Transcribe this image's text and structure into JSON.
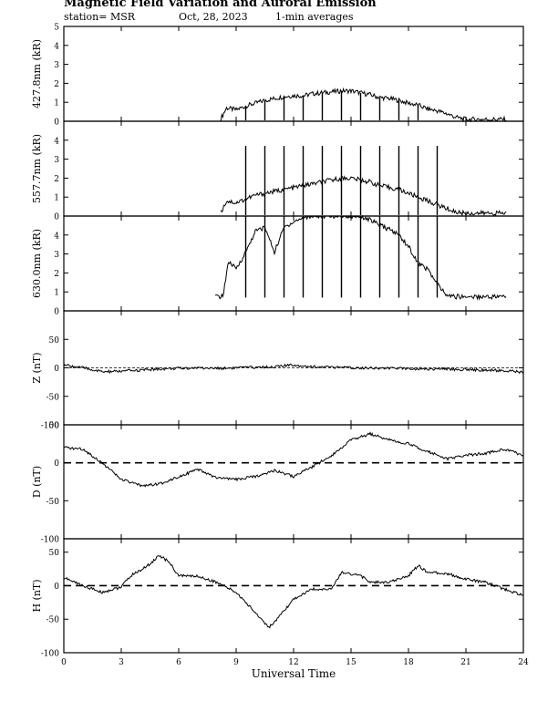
{
  "header": {
    "title": "Magnetic Field Variation and Auroral Emission",
    "station": "station= MSR",
    "date": "Oct, 28, 2023",
    "averaging": "1-min averages"
  },
  "chart_data": [
    {
      "type": "line",
      "ylabel": "427.8nm (kR)",
      "xlim": [
        0,
        24
      ],
      "ylim": [
        0,
        5
      ],
      "yticks": [
        0,
        1,
        2,
        3,
        4,
        5
      ],
      "data_start_hour": 8.2,
      "data_end_hour": 23.1,
      "spike_hours": [
        9.5,
        10.5,
        11.5,
        12.5,
        13.5,
        14.5,
        15.5,
        16.5,
        17.5,
        18.5
      ],
      "series": [
        {
          "x": [
            8.2,
            8.5,
            9,
            9.5,
            10,
            10.5,
            11,
            11.5,
            12,
            12.5,
            13,
            13.5,
            14,
            14.5,
            15,
            15.5,
            16,
            16.5,
            17,
            17.5,
            18,
            18.5,
            19,
            19.5,
            20,
            20.5,
            21,
            21.5,
            22,
            22.5,
            23.1
          ],
          "y": [
            0.15,
            0.7,
            0.6,
            0.8,
            0.95,
            1.1,
            1.2,
            1.3,
            1.35,
            1.35,
            1.45,
            1.5,
            1.55,
            1.6,
            1.6,
            1.5,
            1.4,
            1.25,
            1.2,
            1.1,
            0.95,
            0.85,
            0.65,
            0.55,
            0.4,
            0.2,
            0.1,
            0.1,
            0.1,
            0.1,
            0.1
          ]
        }
      ]
    },
    {
      "type": "line",
      "ylabel": "557.7nm (kR)",
      "xlim": [
        0,
        24
      ],
      "ylim": [
        0,
        5
      ],
      "yticks": [
        0,
        1,
        2,
        3,
        4
      ],
      "data_start_hour": 8.2,
      "data_end_hour": 23.1,
      "spike_hours": [
        9.5,
        10.5,
        11.5,
        12.5,
        13.5,
        14.5,
        15.5,
        16.5,
        17.5,
        18.5,
        19.5
      ],
      "spike_top": 3.7,
      "series": [
        {
          "x": [
            8.2,
            8.5,
            9,
            9.5,
            10,
            10.5,
            11,
            11.5,
            12,
            12.5,
            13,
            13.5,
            14,
            14.5,
            15,
            15.5,
            16,
            16.5,
            17,
            17.5,
            18,
            18.5,
            19,
            19.5,
            20,
            20.5,
            21,
            21.5,
            22,
            22.5,
            23.1
          ],
          "y": [
            0.2,
            0.8,
            0.7,
            0.9,
            1.1,
            1.2,
            1.3,
            1.4,
            1.5,
            1.6,
            1.7,
            1.8,
            1.9,
            2.0,
            2.0,
            1.9,
            1.8,
            1.6,
            1.5,
            1.4,
            1.2,
            1.0,
            0.8,
            0.6,
            0.4,
            0.2,
            0.15,
            0.15,
            0.15,
            0.15,
            0.15
          ]
        }
      ]
    },
    {
      "type": "line",
      "ylabel": "630.0nm (kR)",
      "xlim": [
        0,
        24
      ],
      "ylim": [
        0,
        5
      ],
      "yticks": [
        0,
        1,
        2,
        3,
        4
      ],
      "data_start_hour": 7.9,
      "data_end_hour": 23.1,
      "spike_hours": [
        9.5,
        10.5,
        11.5,
        12.5,
        13.5,
        14.5,
        15.5,
        16.5,
        17.5,
        18.5,
        19.5
      ],
      "spike_top": 5.0,
      "series": [
        {
          "x": [
            7.9,
            8.3,
            8.6,
            9,
            9.5,
            10,
            10.5,
            11,
            11.5,
            12,
            12.5,
            13,
            13.5,
            14,
            14.5,
            15,
            15.5,
            16,
            16.5,
            17,
            17.5,
            18,
            18.5,
            19,
            19.5,
            20,
            20.5,
            21,
            21.5,
            22,
            22.5,
            23.1
          ],
          "y": [
            0.75,
            0.75,
            2.6,
            2.2,
            3.1,
            4.2,
            4.4,
            3.1,
            4.4,
            4.7,
            4.9,
            5.0,
            5.0,
            5.0,
            5.0,
            5.0,
            5.0,
            4.8,
            4.5,
            4.3,
            4.0,
            3.4,
            2.5,
            2.2,
            1.4,
            0.8,
            0.75,
            0.75,
            0.75,
            0.75,
            0.75,
            0.75
          ]
        }
      ]
    },
    {
      "type": "line",
      "ylabel": "Z (nT)",
      "xlim": [
        0,
        24
      ],
      "ylim": [
        -100,
        100
      ],
      "yticks": [
        -100,
        -50,
        0,
        50
      ],
      "reference_line": 0,
      "series": [
        {
          "x": [
            0,
            1,
            2,
            3,
            4,
            5,
            6,
            7,
            8,
            9,
            10,
            11,
            12,
            13,
            14,
            15,
            16,
            17,
            18,
            19,
            20,
            21,
            22,
            23,
            24
          ],
          "y": [
            5,
            0,
            -7,
            -6,
            -4,
            -2,
            -1,
            0,
            -1,
            0,
            1,
            2,
            5,
            2,
            1,
            0,
            0,
            -1,
            -1,
            -2,
            -2,
            -3,
            -4,
            -5,
            -8
          ]
        }
      ]
    },
    {
      "type": "line",
      "ylabel": "D (nT)",
      "xlim": [
        0,
        24
      ],
      "ylim": [
        -100,
        50
      ],
      "yticks": [
        -100,
        -50,
        0,
        50
      ],
      "reference_line": 0,
      "series": [
        {
          "x": [
            0,
            1,
            2,
            3,
            4,
            5,
            6,
            7,
            8,
            9,
            10,
            11,
            12,
            13,
            14,
            15,
            16,
            17,
            18,
            19,
            20,
            21,
            22,
            23,
            24
          ],
          "y": [
            20,
            18,
            0,
            -22,
            -30,
            -28,
            -18,
            -9,
            -20,
            -22,
            -18,
            -10,
            -18,
            -5,
            10,
            30,
            38,
            30,
            25,
            15,
            5,
            10,
            12,
            18,
            10
          ]
        }
      ]
    },
    {
      "type": "line",
      "ylabel": "H (nT)",
      "xlabel": "Universal Time",
      "xlim": [
        0,
        24
      ],
      "ylim": [
        -100,
        70
      ],
      "yticks": [
        -100,
        -50,
        0,
        50
      ],
      "xticks": [
        0,
        3,
        6,
        9,
        12,
        15,
        18,
        21,
        24
      ],
      "reference_line": 0,
      "series": [
        {
          "x": [
            0,
            1,
            2,
            3,
            3.5,
            4.3,
            5,
            5.5,
            6,
            7,
            8,
            9,
            10,
            10.7,
            11,
            11.5,
            12,
            13,
            14,
            14.5,
            15.5,
            16,
            17,
            18,
            18.5,
            19,
            20,
            21,
            22,
            23,
            24
          ],
          "y": [
            12,
            0,
            -10,
            -2,
            15,
            28,
            45,
            35,
            15,
            14,
            5,
            -10,
            -40,
            -62,
            -55,
            -38,
            -20,
            -5,
            -5,
            20,
            15,
            5,
            5,
            15,
            30,
            20,
            18,
            10,
            5,
            -5,
            -15
          ]
        }
      ]
    }
  ]
}
